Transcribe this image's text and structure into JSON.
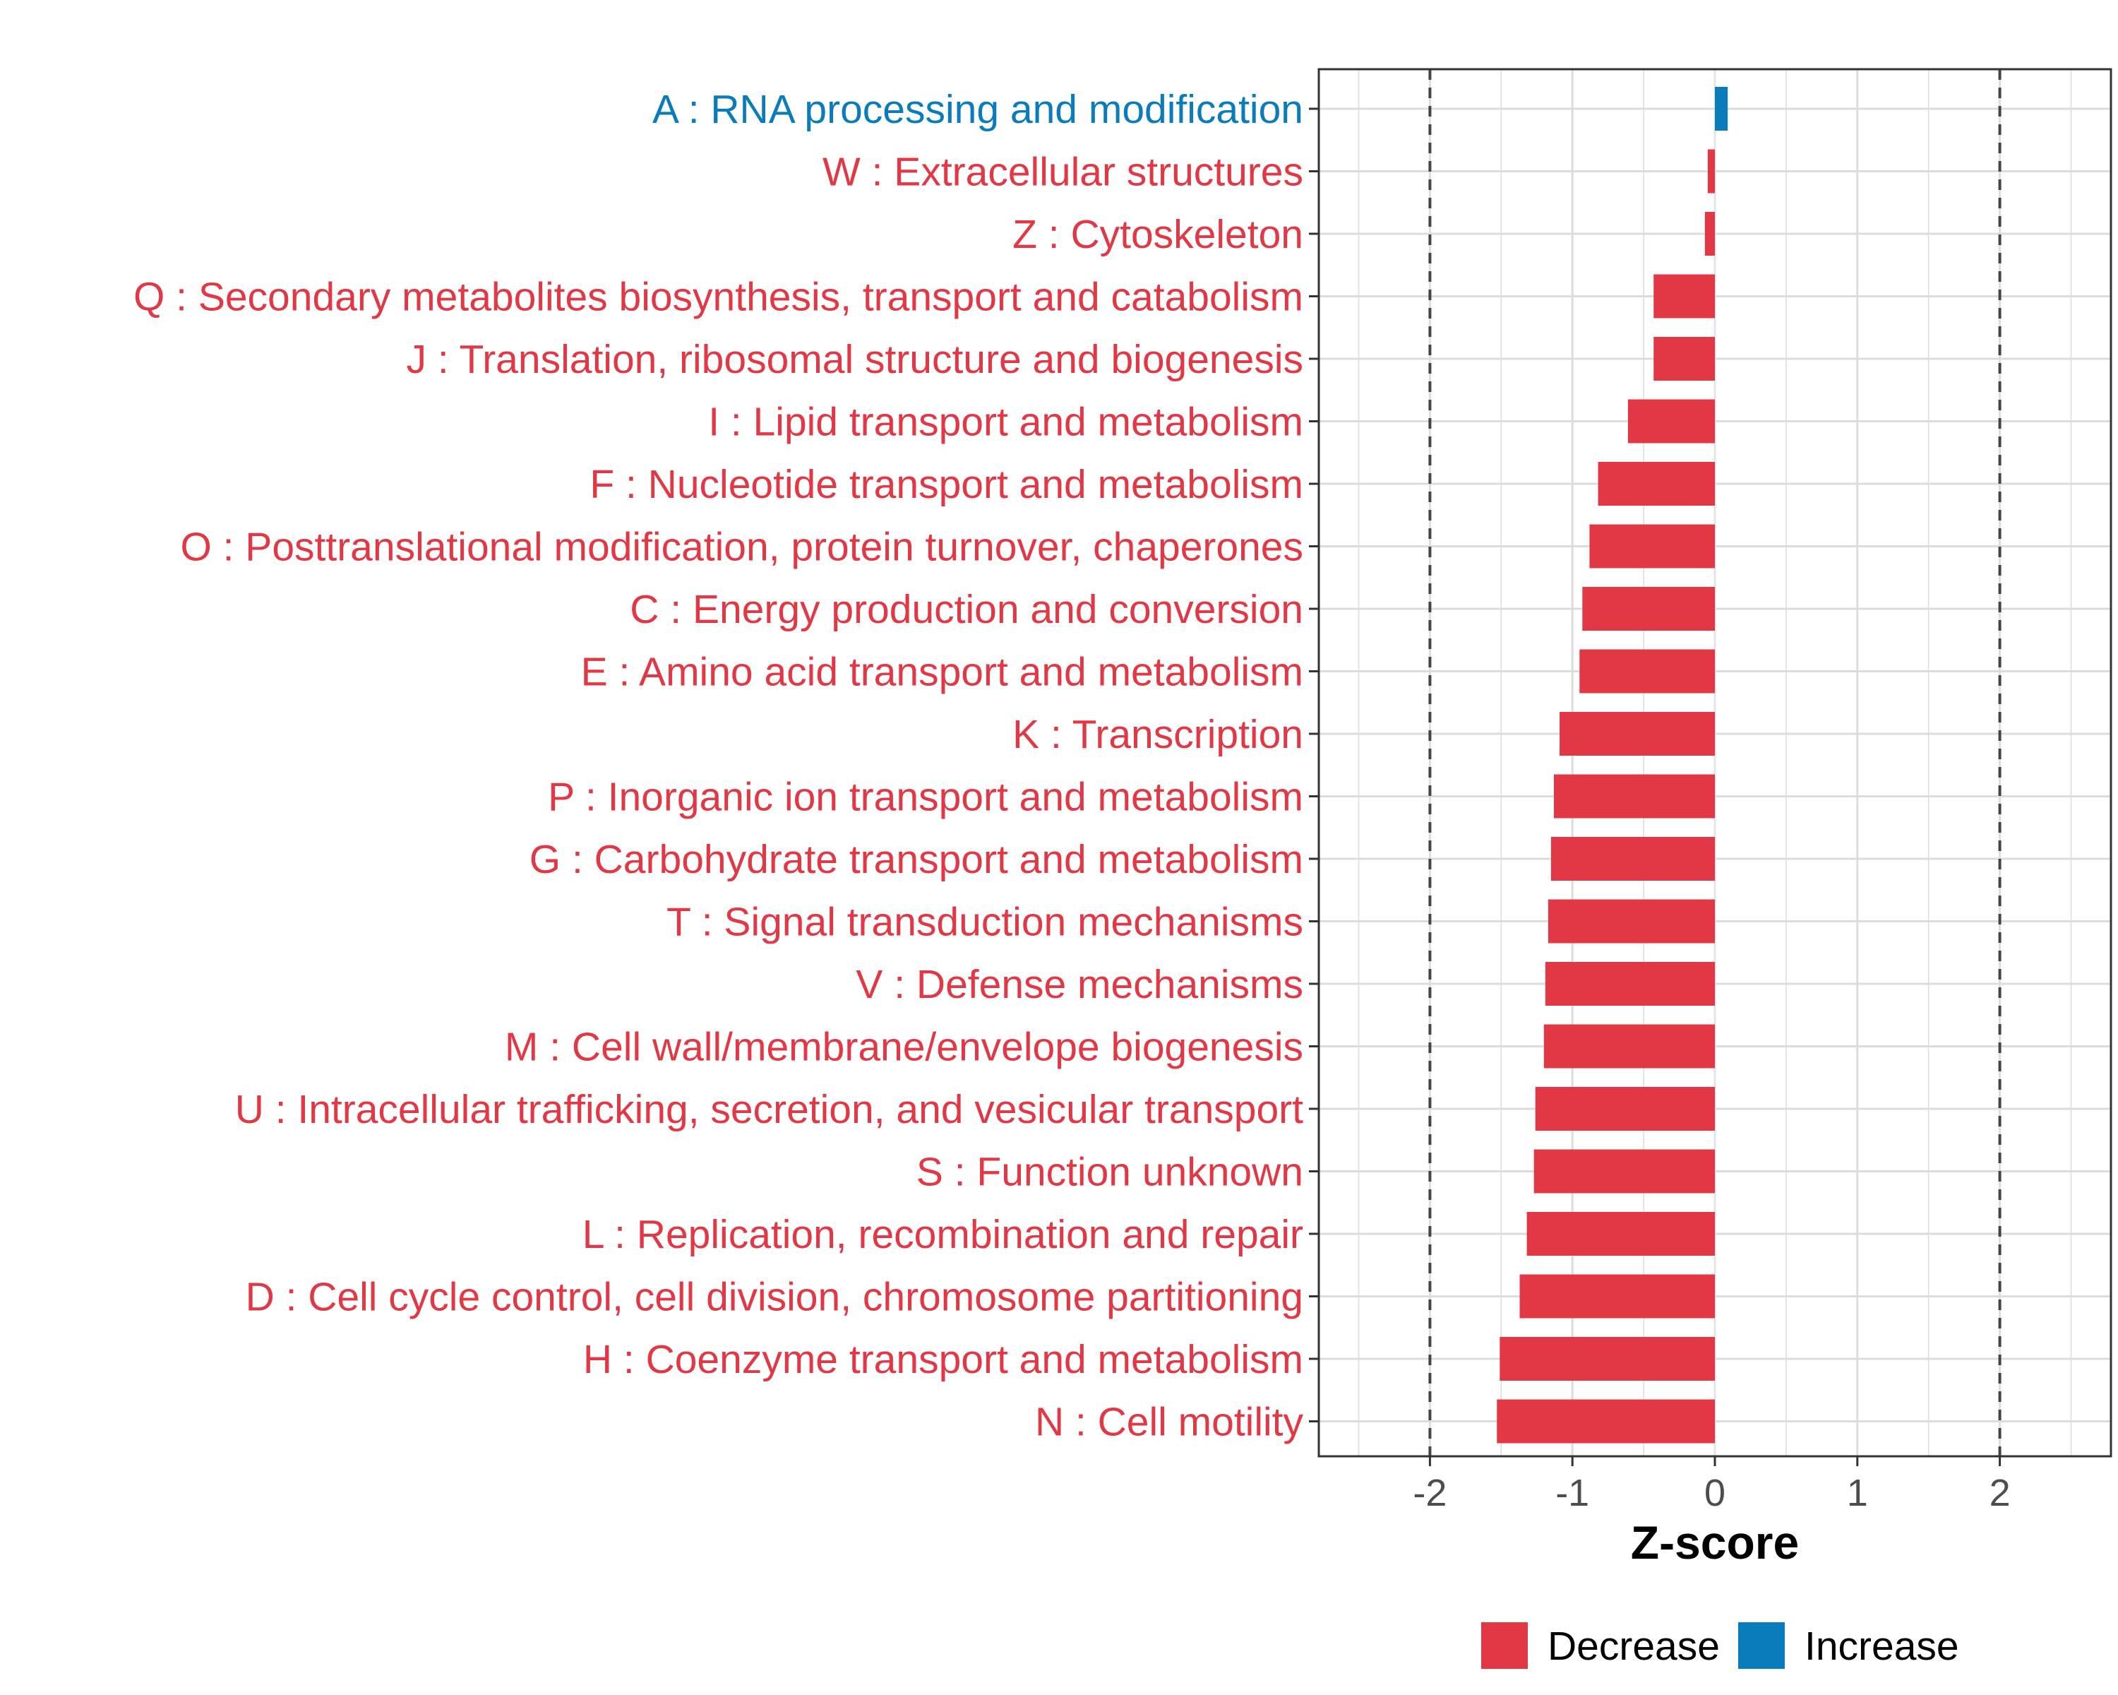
{
  "colors": {
    "decrease": "#E23744",
    "increase": "#0A7BBB",
    "grid": "#DCDCDC",
    "panel_border": "#333333",
    "zero_line": "#E4E4E4",
    "threshold_line": "#444444"
  },
  "chart_data": {
    "type": "bar",
    "orientation": "horizontal",
    "title": "",
    "xlabel": "Z-score",
    "ylabel": "",
    "xlim": [
      -2.78,
      2.78
    ],
    "xticks": [
      -2,
      -1,
      0,
      1,
      2
    ],
    "xtick_labels": [
      "-2",
      "-1",
      "0",
      "1",
      "2"
    ],
    "threshold_lines": [
      -2,
      2
    ],
    "grid": true,
    "legend_position": "bottom",
    "legend": [
      {
        "key": "Decrease",
        "label": "Decrease"
      },
      {
        "key": "Increase",
        "label": "Increase"
      }
    ],
    "categories": [
      "A : RNA processing and modification",
      "W : Extracellular structures",
      "Z : Cytoskeleton",
      "Q : Secondary metabolites biosynthesis, transport and catabolism",
      "J : Translation, ribosomal structure and biogenesis",
      "I : Lipid transport and metabolism",
      "F : Nucleotide transport and metabolism",
      "O : Posttranslational modification, protein turnover, chaperones",
      "C : Energy production and conversion",
      "E : Amino acid transport and metabolism",
      "K : Transcription",
      "P : Inorganic ion transport and metabolism",
      "G : Carbohydrate transport and metabolism",
      "T : Signal transduction mechanisms",
      "V : Defense mechanisms",
      "M : Cell wall/membrane/envelope biogenesis",
      "U : Intracellular trafficking, secretion, and vesicular transport",
      "S : Function unknown",
      "L : Replication, recombination and repair",
      "D : Cell cycle control, cell division, chromosome partitioning",
      "H : Coenzyme transport and metabolism",
      "N : Cell motility"
    ],
    "values": [
      0.09,
      -0.05,
      -0.07,
      -0.43,
      -0.43,
      -0.61,
      -0.82,
      -0.88,
      -0.93,
      -0.95,
      -1.09,
      -1.13,
      -1.15,
      -1.17,
      -1.19,
      -1.2,
      -1.26,
      -1.27,
      -1.32,
      -1.37,
      -1.51,
      -1.53
    ],
    "groups": [
      "Increase",
      "Decrease",
      "Decrease",
      "Decrease",
      "Decrease",
      "Decrease",
      "Decrease",
      "Decrease",
      "Decrease",
      "Decrease",
      "Decrease",
      "Decrease",
      "Decrease",
      "Decrease",
      "Decrease",
      "Decrease",
      "Decrease",
      "Decrease",
      "Decrease",
      "Decrease",
      "Decrease",
      "Decrease"
    ]
  }
}
